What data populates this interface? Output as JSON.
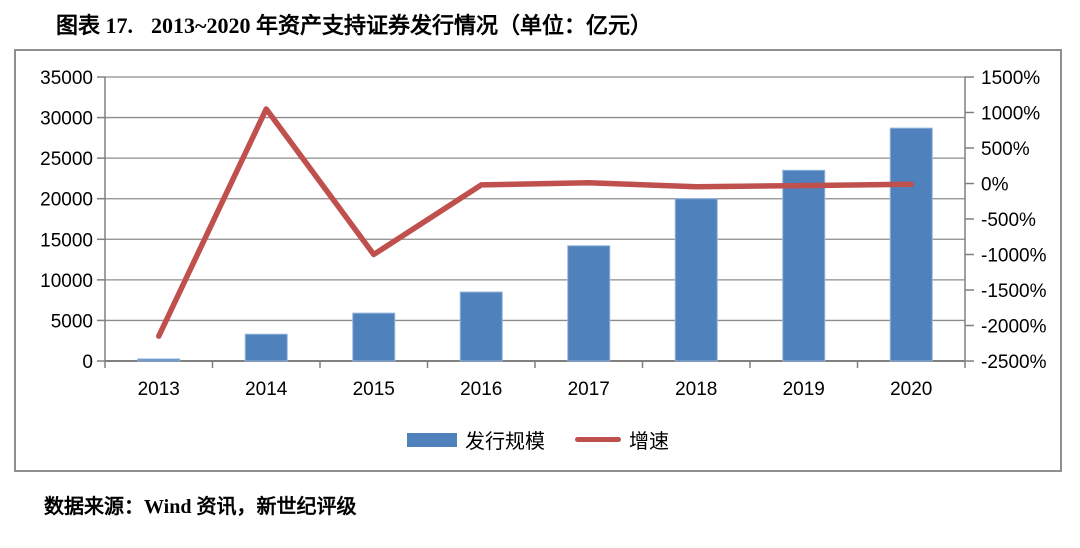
{
  "caption": {
    "label": "图表 17.",
    "text": "2013~2020 年资产支持证券发行情况（单位：亿元）"
  },
  "source": "数据来源：Wind 资讯，新世纪评级",
  "colors": {
    "bar": "#4F81BD",
    "bar_border": "#93B5DC",
    "line": "#C0504D",
    "grid": "#8C8C8C",
    "axis": "#808080",
    "frame_border": "#8F8F8F",
    "text": "#000000"
  },
  "chart_data": {
    "type": "bar+line",
    "title": "2013~2020 年资产支持证券发行情况（单位：亿元）",
    "categories": [
      "2013",
      "2014",
      "2015",
      "2016",
      "2017",
      "2018",
      "2019",
      "2020"
    ],
    "series": [
      {
        "name": "发行规模",
        "type": "bar",
        "axis": "left",
        "values": [
          250,
          3300,
          5900,
          8500,
          14200,
          20000,
          23500,
          28700
        ]
      },
      {
        "name": "增速",
        "type": "line",
        "axis": "right",
        "values": [
          -2150,
          1050,
          -1000,
          -20,
          10,
          -45,
          -30,
          -10
        ]
      }
    ],
    "left_axis": {
      "min": 0,
      "max": 35000,
      "step": 5000,
      "tick_labels": [
        "35000",
        "30000",
        "25000",
        "20000",
        "15000",
        "10000",
        "5000",
        "0"
      ]
    },
    "right_axis": {
      "min": -2500,
      "max": 1500,
      "step": 500,
      "tick_labels": [
        "1500%",
        "1000%",
        "500%",
        "0%",
        "-500%",
        "-1000%",
        "-1500%",
        "-2000%",
        "-2500%"
      ]
    },
    "grid": true,
    "legend_position": "bottom"
  }
}
